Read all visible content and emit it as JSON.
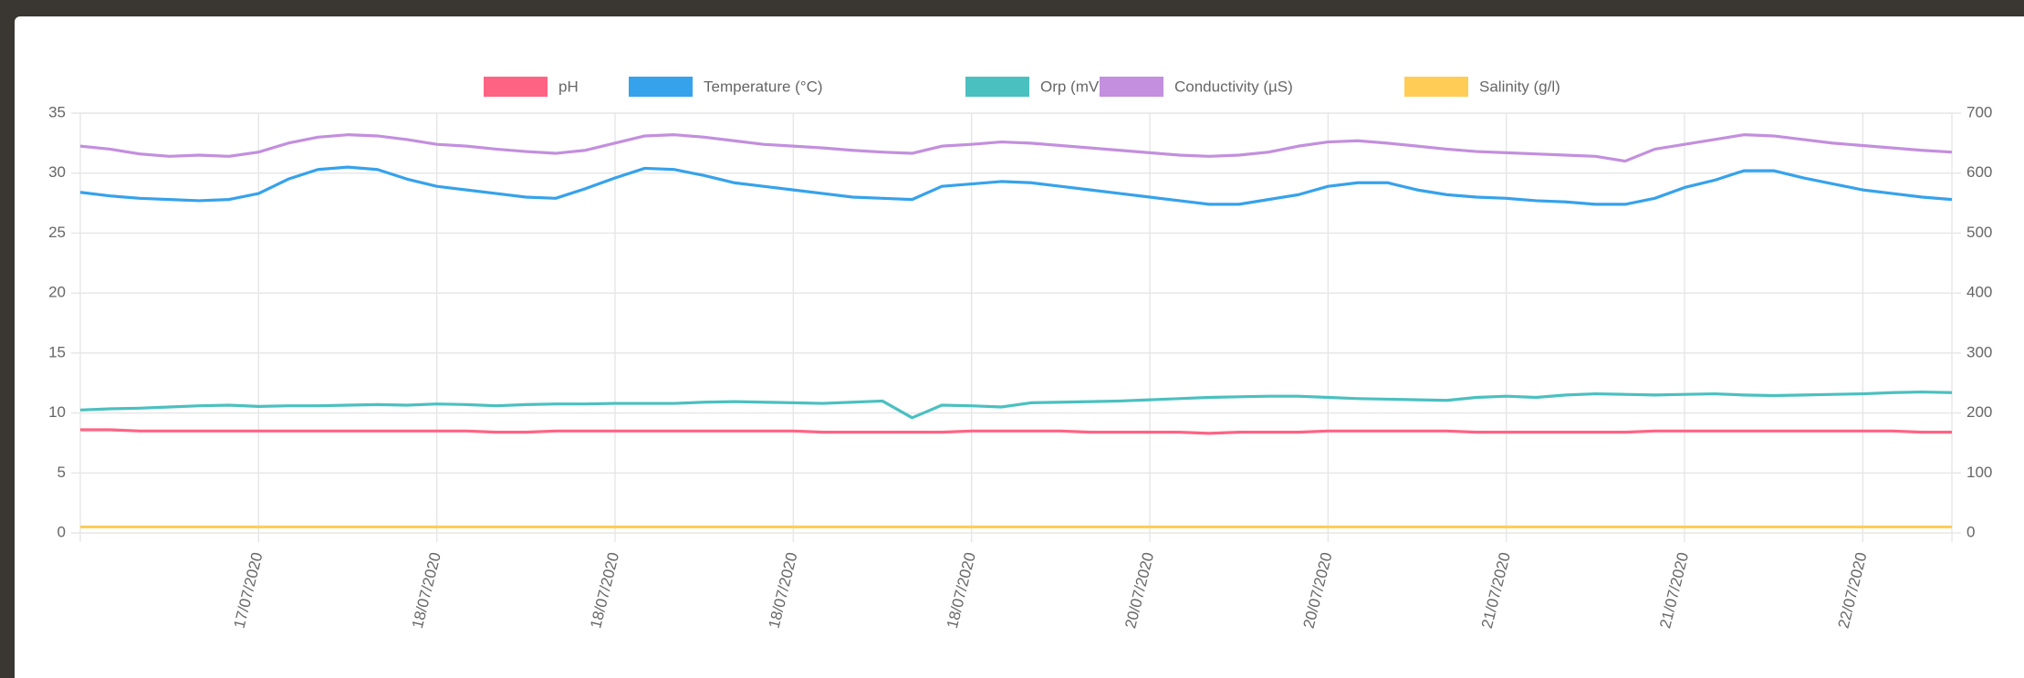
{
  "chart_data": {
    "type": "line",
    "categories": [
      null,
      null,
      null,
      null,
      null,
      null,
      "17/07/2020",
      null,
      null,
      null,
      null,
      null,
      "18/07/2020",
      null,
      null,
      null,
      null,
      null,
      "18/07/2020",
      null,
      null,
      null,
      null,
      null,
      "18/07/2020",
      null,
      null,
      null,
      null,
      null,
      "18/07/2020",
      null,
      null,
      null,
      null,
      null,
      "20/07/2020",
      null,
      null,
      null,
      null,
      null,
      "20/07/2020",
      null,
      null,
      null,
      null,
      null,
      "21/07/2020",
      null,
      null,
      null,
      null,
      null,
      "21/07/2020",
      null,
      null,
      null,
      null,
      null,
      "22/07/2020",
      null,
      null,
      null
    ],
    "ylim": [
      0,
      35
    ],
    "yticks": [
      0,
      5,
      10,
      15,
      20,
      25,
      30,
      35
    ],
    "y2lim": [
      0,
      700
    ],
    "y2ticks": [
      0,
      100,
      200,
      300,
      400,
      500,
      600,
      700
    ],
    "grid": true,
    "legend": "top",
    "series": [
      {
        "name": "pH",
        "color": "#ff6384",
        "axis": "y",
        "values": [
          8.6,
          8.6,
          8.5,
          8.5,
          8.5,
          8.5,
          8.5,
          8.5,
          8.5,
          8.5,
          8.5,
          8.5,
          8.5,
          8.5,
          8.4,
          8.4,
          8.5,
          8.5,
          8.5,
          8.5,
          8.5,
          8.5,
          8.5,
          8.5,
          8.5,
          8.4,
          8.4,
          8.4,
          8.4,
          8.4,
          8.5,
          8.5,
          8.5,
          8.5,
          8.4,
          8.4,
          8.4,
          8.4,
          8.3,
          8.4,
          8.4,
          8.4,
          8.5,
          8.5,
          8.5,
          8.5,
          8.5,
          8.4,
          8.4,
          8.4,
          8.4,
          8.4,
          8.4,
          8.5,
          8.5,
          8.5,
          8.5,
          8.5,
          8.5,
          8.5,
          8.5,
          8.5,
          8.4,
          8.4
        ]
      },
      {
        "name": "Temperature (°C)",
        "color": "#36a2eb",
        "axis": "y",
        "values": [
          28.4,
          28.1,
          27.9,
          27.8,
          27.7,
          27.8,
          28.3,
          29.5,
          30.3,
          30.5,
          30.3,
          29.5,
          28.9,
          28.6,
          28.3,
          28.0,
          27.9,
          28.7,
          29.6,
          30.4,
          30.3,
          29.8,
          29.2,
          28.9,
          28.6,
          28.3,
          28.0,
          27.9,
          27.8,
          28.9,
          29.1,
          29.3,
          29.2,
          28.9,
          28.6,
          28.3,
          28.0,
          27.7,
          27.4,
          27.4,
          27.8,
          28.2,
          28.9,
          29.2,
          29.2,
          28.6,
          28.2,
          28.0,
          27.9,
          27.7,
          27.6,
          27.4,
          27.4,
          27.9,
          28.8,
          29.4,
          30.2,
          30.2,
          29.6,
          29.1,
          28.6,
          28.3,
          28.0,
          27.8
        ]
      },
      {
        "name": "Orp (mV)",
        "color": "#4bc0c0",
        "axis": "y2",
        "values": [
          205,
          207,
          208,
          210,
          212,
          213,
          211,
          212,
          212,
          213,
          214,
          213,
          215,
          214,
          212,
          214,
          215,
          215,
          216,
          216,
          216,
          218,
          219,
          218,
          217,
          216,
          218,
          220,
          192,
          213,
          212,
          210,
          217,
          218,
          219,
          220,
          222,
          224,
          226,
          227,
          228,
          228,
          226,
          224,
          223,
          222,
          221,
          226,
          228,
          226,
          230,
          232,
          231,
          230,
          231,
          232,
          230,
          229,
          230,
          231,
          232,
          234,
          235,
          234
        ]
      },
      {
        "name": "Conductivity (µS)",
        "color": "#c38fde",
        "axis": "y2",
        "values": [
          645,
          640,
          632,
          628,
          630,
          628,
          635,
          650,
          660,
          664,
          662,
          656,
          648,
          645,
          640,
          636,
          633,
          638,
          650,
          662,
          664,
          660,
          654,
          648,
          645,
          642,
          638,
          635,
          633,
          645,
          648,
          652,
          650,
          646,
          642,
          638,
          634,
          630,
          628,
          630,
          635,
          645,
          652,
          654,
          650,
          645,
          640,
          636,
          634,
          632,
          630,
          628,
          620,
          640,
          648,
          656,
          664,
          662,
          656,
          650,
          646,
          642,
          638,
          635
        ]
      },
      {
        "name": "Salinity (g/l)",
        "color": "#ffcd56",
        "axis": "y",
        "values": [
          0.5,
          0.5,
          0.5,
          0.5,
          0.5,
          0.5,
          0.5,
          0.5,
          0.5,
          0.5,
          0.5,
          0.5,
          0.5,
          0.5,
          0.5,
          0.5,
          0.5,
          0.5,
          0.5,
          0.5,
          0.5,
          0.5,
          0.5,
          0.5,
          0.5,
          0.5,
          0.5,
          0.5,
          0.5,
          0.5,
          0.5,
          0.5,
          0.5,
          0.5,
          0.5,
          0.5,
          0.5,
          0.5,
          0.5,
          0.5,
          0.5,
          0.5,
          0.5,
          0.5,
          0.5,
          0.5,
          0.5,
          0.5,
          0.5,
          0.5,
          0.5,
          0.5,
          0.5,
          0.5,
          0.5,
          0.5,
          0.5,
          0.5,
          0.5,
          0.5,
          0.5,
          0.5,
          0.5,
          0.5
        ]
      }
    ]
  }
}
